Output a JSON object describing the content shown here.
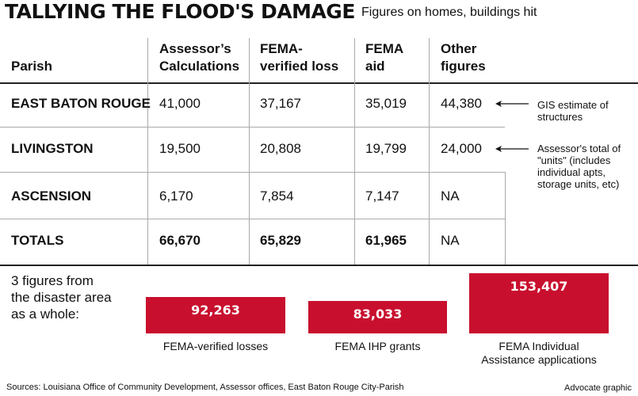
{
  "title": "TALLYING THE FLOOD'S DAMAGE",
  "subtitle": "Figures on homes, buildings hit",
  "table": {
    "headers": [
      "Parish",
      "Assessor’s Calculations",
      "FEMA-verified loss",
      "FEMA aid",
      "Other figures"
    ],
    "header_lines": [
      [
        "Parish"
      ],
      [
        "Assessor’s",
        "Calculations"
      ],
      [
        "FEMA-",
        "verified loss"
      ],
      [
        "FEMA",
        "aid"
      ],
      [
        "Other",
        "figures"
      ]
    ],
    "rows": [
      {
        "parish": "EAST BATON ROUGE",
        "assessor": "41,000",
        "fema_verified": "37,167",
        "fema_aid": "35,019",
        "other": "44,380"
      },
      {
        "parish": "LIVINGSTON",
        "assessor": "19,500",
        "fema_verified": "20,808",
        "fema_aid": "19,799",
        "other": "24,000"
      },
      {
        "parish": "ASCENSION",
        "assessor": "6,170",
        "fema_verified": "7,854",
        "fema_aid": "7,147",
        "other": "NA"
      },
      {
        "parish": "TOTALS",
        "assessor": "66,670",
        "fema_verified": "65,829",
        "fema_aid": "61,965",
        "other": "NA"
      }
    ],
    "notes": [
      {
        "lines": [
          "GIS estimate of",
          "structures"
        ]
      },
      {
        "lines": [
          "Assessor's total of",
          "\"units\" (includes",
          "individual apts,",
          "storage units, etc)"
        ]
      }
    ]
  },
  "intro_lines": [
    "3 figures from",
    "the disaster area",
    "as a whole:"
  ],
  "chart_data": {
    "type": "bar",
    "categories": [
      "FEMA-verified losses",
      "FEMA IHP grants",
      "FEMA Individual Assistance applications"
    ],
    "category_lines": [
      [
        "FEMA-verified losses"
      ],
      [
        "FEMA IHP grants"
      ],
      [
        "FEMA Individual",
        "Assistance applications"
      ]
    ],
    "values": [
      92263,
      83033,
      153407
    ],
    "value_labels": [
      "92,263",
      "83,033",
      "153,407"
    ],
    "bar_color": "#c8102e"
  },
  "source": "Sources: Louisiana Office of Community Development, Assessor offices, East Baton Rouge City-Parish",
  "credit": "Advocate graphic"
}
